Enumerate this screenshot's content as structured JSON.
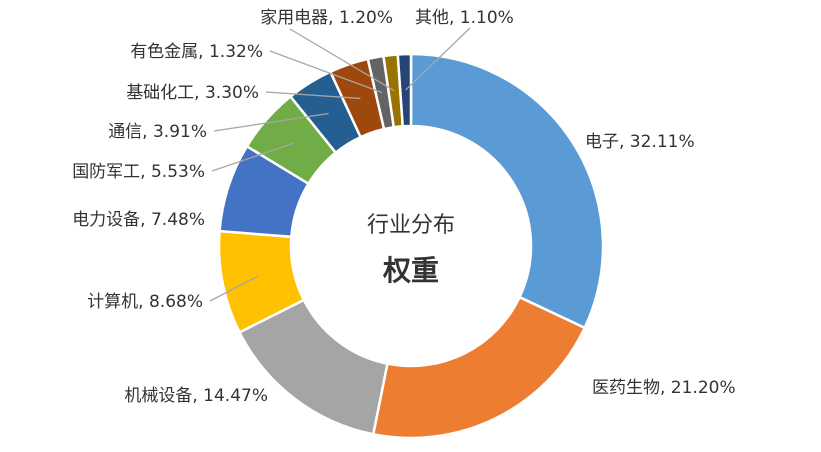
{
  "chart_data": {
    "type": "pie",
    "donut": true,
    "center_text": [
      "行业分布",
      "权重"
    ],
    "categories": [
      "电子",
      "医药生物",
      "机械设备",
      "计算机",
      "电力设备",
      "国防军工",
      "通信",
      "基础化工",
      "有色金属",
      "家用电器",
      "其他"
    ],
    "values": [
      32.11,
      21.2,
      14.47,
      8.68,
      7.48,
      5.53,
      3.91,
      3.3,
      1.32,
      1.2,
      1.1
    ],
    "labels": [
      "电子, 32.11%",
      "医药生物, 21.20%",
      "机械设备, 14.47%",
      "计算机, 8.68%",
      "电力设备, 7.48%",
      "国防军工, 5.53%",
      "通信, 3.91%",
      "基础化工, 3.30%",
      "有色金属, 1.32%",
      "家用电器, 1.20%",
      "其他, 1.10%"
    ],
    "colors": [
      "#5B9BD5",
      "#ED7D31",
      "#A5A5A5",
      "#FFC000",
      "#4472C4",
      "#70AD47",
      "#255E91",
      "#9E480E",
      "#636363",
      "#997300",
      "#264478"
    ],
    "start_angle_deg": 0,
    "direction": "clockwise",
    "legend": "none"
  }
}
